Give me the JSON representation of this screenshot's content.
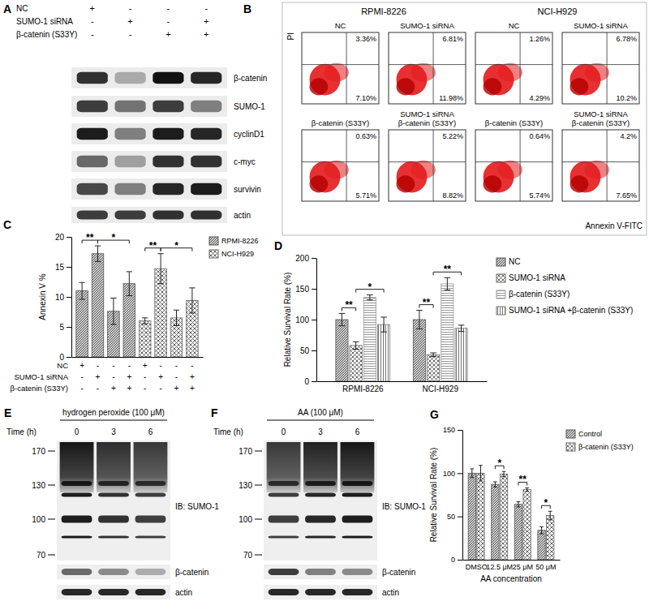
{
  "blot_a": {
    "panel": "A",
    "conditions": [
      {
        "label": "NC",
        "marks": [
          "+",
          "-",
          "-",
          "-"
        ]
      },
      {
        "label": "SUMO-1 siRNA",
        "marks": [
          "-",
          "+",
          "-",
          "+"
        ]
      },
      {
        "label": "β-catenin (S33Y)",
        "marks": [
          "-",
          "-",
          "+",
          "+"
        ]
      }
    ],
    "bands": [
      {
        "label": "β-catenin",
        "intensity": [
          0.85,
          0.3,
          1,
          0.9
        ]
      },
      {
        "label": "SUMO-1",
        "intensity": [
          0.8,
          0.55,
          0.8,
          0.5
        ]
      },
      {
        "label": "cyclinD1",
        "intensity": [
          0.95,
          0.5,
          0.95,
          0.9
        ]
      },
      {
        "label": "c-myc",
        "intensity": [
          0.6,
          0.35,
          0.85,
          0.85
        ]
      },
      {
        "label": "survivin",
        "intensity": [
          0.75,
          0.5,
          0.9,
          0.95
        ]
      },
      {
        "label": "actin",
        "intensity": [
          0.8,
          0.8,
          0.85,
          0.85
        ]
      }
    ]
  },
  "flow_b": {
    "panel": "B",
    "y_label": "PI",
    "x_label": "Annexin V-FITC",
    "cell_lines": [
      {
        "name": "RPMI-8226",
        "plots": [
          {
            "title": [
              "NC"
            ],
            "upper": "3.36%",
            "lower": "7.10%"
          },
          {
            "title": [
              "SUMO-1 siRNA"
            ],
            "upper": "6.81%",
            "lower": "11.98%"
          },
          {
            "title": [
              "β-catenin (S33Y)"
            ],
            "upper": "0.63%",
            "lower": "5.71%"
          },
          {
            "title": [
              "SUMO-1 siRNA",
              "β-catenin (S33Y)"
            ],
            "upper": "5.22%",
            "lower": "8.82%"
          }
        ]
      },
      {
        "name": "NCI-H929",
        "plots": [
          {
            "title": [
              "NC"
            ],
            "upper": "1.26%",
            "lower": "4.29%"
          },
          {
            "title": [
              "SUMO-1 siRNA"
            ],
            "upper": "6.78%",
            "lower": "10.2%"
          },
          {
            "title": [
              "β-catenin (S33Y)"
            ],
            "upper": "0.64%",
            "lower": "5.74%"
          },
          {
            "title": [
              "SUMO-1 siRNA",
              "β-catenin (S33Y)"
            ],
            "upper": "4.2%",
            "lower": "7.65%"
          }
        ]
      }
    ]
  },
  "chart_data": [
    {
      "type": "bar",
      "panel": "C",
      "ylabel": "Annexin V %",
      "categories": [
        null,
        null,
        null,
        null,
        null,
        null,
        null,
        null
      ],
      "ylim": [
        0,
        20
      ],
      "yticks": [
        0,
        5,
        10,
        15,
        20
      ],
      "legend": "right",
      "series": [
        {
          "name": "RPMI-8226",
          "color": "#555555",
          "values": [
            11,
            17.2,
            7.6,
            12.2,
            null,
            null,
            null,
            null
          ],
          "error": [
            1.4,
            1.3,
            2.2,
            2.0,
            null,
            null,
            null,
            null
          ]
        },
        {
          "name": "NCI-H929",
          "color": "#666666",
          "values": [
            null,
            null,
            null,
            null,
            6,
            14.7,
            6.5,
            9.4
          ],
          "error": [
            null,
            null,
            null,
            null,
            0.5,
            2.5,
            1.3,
            2.1
          ]
        }
      ],
      "condition_table": [
        {
          "label": "NC",
          "marks": [
            "+",
            "-",
            "-",
            "-",
            "+",
            "-",
            "-",
            "-"
          ]
        },
        {
          "label": "SUMO-1 siRNA",
          "marks": [
            "-",
            "+",
            "-",
            "+",
            "-",
            "+",
            "-",
            "+"
          ]
        },
        {
          "label": "β-catenin (S33Y)",
          "marks": [
            "-",
            "-",
            "+",
            "+",
            "-",
            "-",
            "+",
            "+"
          ]
        }
      ],
      "annotations": [
        {
          "text": "**",
          "between": [
            0,
            1
          ]
        },
        {
          "text": "*",
          "between": [
            1,
            3
          ]
        },
        {
          "text": "**",
          "between": [
            4,
            5
          ]
        },
        {
          "text": "*",
          "between": [
            5,
            7
          ]
        }
      ]
    },
    {
      "type": "bar",
      "panel": "D",
      "ylabel": "Relative Survival Rate (%)",
      "categories": [
        "RPMI-8226",
        "NCI-H929"
      ],
      "ylim": [
        0,
        200
      ],
      "yticks": [
        0,
        50,
        100,
        150,
        200
      ],
      "legend": "right",
      "series": [
        {
          "name": "NC",
          "color": "#555555",
          "values": [
            100,
            100
          ],
          "error": [
            10,
            15
          ]
        },
        {
          "name": "SUMO-1 siRNA",
          "color": "#666666",
          "values": [
            58,
            43
          ],
          "error": [
            6,
            3
          ]
        },
        {
          "name": "β-catenin (S33Y)",
          "color": "#999999",
          "values": [
            136,
            158
          ],
          "error": [
            4,
            10
          ]
        },
        {
          "name": "SUMO-1 siRNA +β-catenin (S33Y)",
          "color": "#777777",
          "values": [
            92,
            86
          ],
          "error": [
            12,
            5
          ]
        }
      ],
      "annotations": [
        {
          "text": "**",
          "category": 0,
          "between": [
            0,
            1
          ]
        },
        {
          "text": "*",
          "category": 0,
          "between": [
            1,
            3
          ]
        },
        {
          "text": "**",
          "category": 1,
          "between": [
            0,
            1
          ]
        },
        {
          "text": "**",
          "category": 1,
          "between": [
            1,
            3
          ]
        }
      ]
    },
    {
      "type": "bar",
      "panel": "G",
      "ylabel": "Relative Survival Rate (%)",
      "xlabel": "AA concentration",
      "categories": [
        "DMSO",
        "12.5 μM",
        "25 μM",
        "50 μM"
      ],
      "ylim": [
        0,
        150
      ],
      "yticks": [
        0,
        50,
        100,
        150
      ],
      "legend": "right",
      "series": [
        {
          "name": "Control",
          "color": "#555555",
          "values": [
            100,
            87,
            64,
            34
          ],
          "error": [
            5,
            3,
            3,
            4
          ]
        },
        {
          "name": "β-catenin (S33Y)",
          "color": "#666666",
          "values": [
            100,
            99,
            81,
            51
          ],
          "error": [
            9,
            3,
            2,
            5
          ]
        }
      ],
      "annotations": [
        {
          "text": "*",
          "category": 1,
          "between": [
            0,
            1
          ]
        },
        {
          "text": "**",
          "category": 2,
          "between": [
            0,
            1
          ]
        },
        {
          "text": "*",
          "category": 3,
          "between": [
            0,
            1
          ]
        }
      ]
    }
  ],
  "blot_e": {
    "panel": "E",
    "treatment": "hydrogen peroxide (100 μM)",
    "time_label": "Time (h)",
    "times": [
      0,
      3,
      6
    ],
    "markers": [
      170,
      130,
      100,
      70
    ],
    "ib_label": "IB: SUMO-1",
    "sumo_intensity": [
      0.95,
      0.85,
      0.8
    ],
    "bands": [
      {
        "label": "β-catenin",
        "intensity": [
          0.6,
          0.45,
          0.3
        ]
      },
      {
        "label": "actin",
        "intensity": [
          0.9,
          0.9,
          0.9
        ]
      }
    ]
  },
  "blot_f": {
    "panel": "F",
    "treatment": "AA (100 μM)",
    "time_label": "Time (h)",
    "times": [
      0,
      3,
      6
    ],
    "markers": [
      170,
      130,
      100,
      70
    ],
    "ib_label": "IB: SUMO-1",
    "sumo_intensity": [
      0.8,
      0.9,
      0.95
    ],
    "bands": [
      {
        "label": "β-catenin",
        "intensity": [
          0.8,
          0.5,
          0.45
        ]
      },
      {
        "label": "actin",
        "intensity": [
          0.9,
          0.9,
          0.9
        ]
      }
    ]
  }
}
